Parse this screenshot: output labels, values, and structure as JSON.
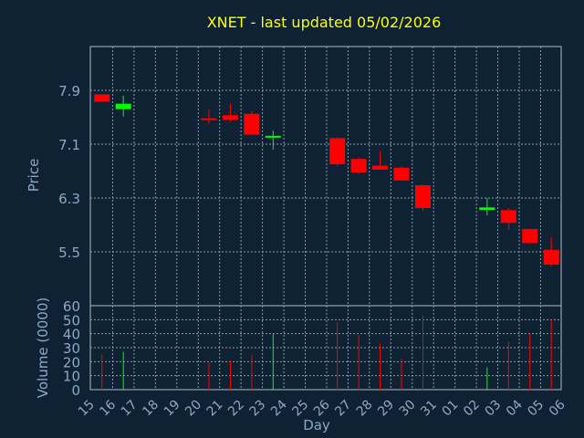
{
  "chart_data": {
    "type": "candlestick",
    "title": "XNET - last updated 05/02/2026",
    "xlabel": "Day",
    "x_tick_labels": [
      "15",
      "16",
      "17",
      "18",
      "19",
      "20",
      "21",
      "22",
      "23",
      "24",
      "25",
      "26",
      "27",
      "28",
      "29",
      "30",
      "31",
      "01",
      "02",
      "03",
      "04",
      "05",
      "06"
    ],
    "price_panel": {
      "ylabel": "Price",
      "ylim": [
        4.7,
        8.55
      ],
      "yticks": [
        5.5,
        6.3,
        7.1,
        7.9
      ],
      "ytick_labels": [
        "5.5",
        "6.3",
        "7.1",
        "7.9"
      ],
      "grid": true
    },
    "volume_panel": {
      "ylabel": "Volume (0000)",
      "ylim": [
        0,
        60
      ],
      "yticks": [
        0,
        10,
        20,
        30,
        40,
        50,
        60
      ],
      "ytick_labels": [
        "0",
        "10",
        "20",
        "30",
        "40",
        "50",
        "60"
      ],
      "grid": true
    },
    "candles": [
      {
        "day": 0,
        "open": 7.84,
        "high": 7.84,
        "low": 7.73,
        "close": 7.73,
        "volume": 25
      },
      {
        "day": 1,
        "open": 7.62,
        "high": 7.82,
        "low": 7.51,
        "close": 7.7,
        "volume": 27
      },
      {
        "day": 5,
        "open": 7.47,
        "high": 7.62,
        "low": 7.4,
        "close": 7.45,
        "volume": 19
      },
      {
        "day": 6,
        "open": 7.53,
        "high": 7.71,
        "low": 7.43,
        "close": 7.46,
        "volume": 21
      },
      {
        "day": 7,
        "open": 7.55,
        "high": 7.59,
        "low": 7.24,
        "close": 7.24,
        "volume": 25
      },
      {
        "day": 8,
        "open": 7.19,
        "high": 7.3,
        "low": 7.02,
        "close": 7.21,
        "volume": 40
      },
      {
        "day": 11,
        "open": 7.19,
        "high": 7.2,
        "low": 6.77,
        "close": 6.8,
        "volume": 48
      },
      {
        "day": 12,
        "open": 6.88,
        "high": 6.9,
        "low": 6.66,
        "close": 6.68,
        "volume": 39
      },
      {
        "day": 13,
        "open": 6.78,
        "high": 7.0,
        "low": 6.72,
        "close": 6.72,
        "volume": 33
      },
      {
        "day": 14,
        "open": 6.75,
        "high": 6.77,
        "low": 6.55,
        "close": 6.56,
        "volume": 22
      },
      {
        "day": 15,
        "open": 6.49,
        "high": 6.5,
        "low": 6.11,
        "close": 6.15,
        "volume": 53
      },
      {
        "day": 18,
        "open": 6.12,
        "high": 6.3,
        "low": 6.04,
        "close": 6.16,
        "volume": 16
      },
      {
        "day": 19,
        "open": 6.12,
        "high": 6.15,
        "low": 5.83,
        "close": 5.93,
        "volume": 34
      },
      {
        "day": 20,
        "open": 5.84,
        "high": 5.84,
        "low": 5.62,
        "close": 5.63,
        "volume": 40
      },
      {
        "day": 21,
        "open": 5.53,
        "high": 5.72,
        "low": 5.28,
        "close": 5.31,
        "volume": 50
      }
    ],
    "colors": {
      "background": "#0f2233",
      "title": "#ffff00",
      "text": "#8aaac8",
      "grid": "#8a9aaa",
      "up": "#00ff00",
      "down": "#ff0000"
    }
  }
}
